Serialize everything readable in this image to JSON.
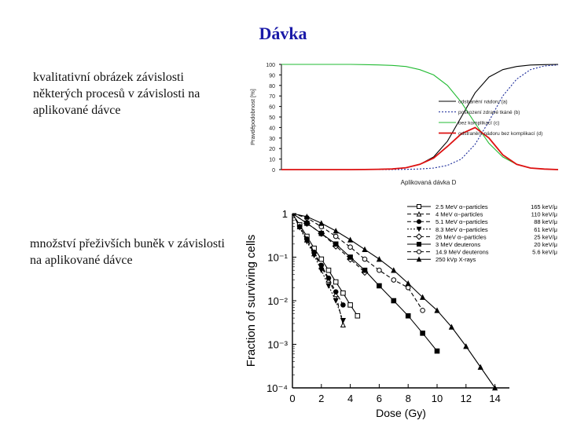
{
  "slide": {
    "title": "Dávka",
    "note1": "kvalitativní obrázek závislosti některých procesů v závislosti na aplikované dávce",
    "note2": "množství přeživších buněk v závislosti na aplikované dávce"
  },
  "chart_data": [
    {
      "type": "line",
      "xlabel": "Aplikovaná dávka D",
      "ylabel": "Pravděpodobnost [%]",
      "ylim": [
        0,
        100
      ],
      "yticks": [
        "0",
        "10",
        "20",
        "30",
        "40",
        "50",
        "60",
        "70",
        "80",
        "90",
        "100"
      ],
      "legend_position": "right",
      "grid": false,
      "x": [
        0,
        0.05,
        0.1,
        0.15,
        0.2,
        0.25,
        0.3,
        0.35,
        0.4,
        0.45,
        0.5,
        0.55,
        0.6,
        0.65,
        0.7,
        0.75,
        0.8,
        0.85,
        0.9,
        0.95,
        1.0
      ],
      "series": [
        {
          "name": "odstranění nádoru (a)",
          "color": "#000000",
          "dash": "solid",
          "values": [
            0,
            0,
            0,
            0,
            0,
            0,
            0.1,
            0.3,
            0.6,
            1.8,
            5,
            12,
            27,
            50,
            73,
            88,
            95,
            98,
            99.4,
            99.8,
            100
          ]
        },
        {
          "name": "poškození zdravé tkáně (b)",
          "color": "#1a2a9a",
          "dash": "dotted",
          "values": [
            0,
            0,
            0,
            0,
            0,
            0,
            0,
            0,
            0.1,
            0.2,
            0.6,
            1.5,
            4,
            10,
            24,
            46,
            70,
            86,
            95,
            98.5,
            99.5
          ]
        },
        {
          "name": "bez komplikací (c)",
          "color": "#22bb33",
          "dash": "solid",
          "values": [
            100,
            100,
            100,
            100,
            100,
            100,
            99.8,
            99.5,
            99,
            98,
            95,
            90,
            80,
            64,
            44,
            25,
            12,
            5,
            1.5,
            0.5,
            0
          ]
        },
        {
          "name": "odstranění nádoru bez komplikací (d)",
          "color": "#dd1111",
          "dash": "solid",
          "values": [
            0,
            0,
            0,
            0,
            0,
            0,
            0.1,
            0.3,
            0.6,
            1.8,
            5,
            11,
            22,
            34,
            40,
            30,
            14,
            5,
            1.5,
            0.5,
            0
          ]
        }
      ]
    },
    {
      "type": "line",
      "xlabel": "Dose   (Gy)",
      "ylabel": "Fraction  of  surviving  cells",
      "xlim": [
        0,
        15
      ],
      "ylim": [
        0.0001,
        1
      ],
      "yscale": "log",
      "xticks": [
        "0",
        "2",
        "4",
        "6",
        "8",
        "10",
        "12",
        "14"
      ],
      "yticks": [
        "1",
        "10⁻¹",
        "10⁻²",
        "10⁻³",
        "10⁻⁴"
      ],
      "legend_position": "top-right",
      "series": [
        {
          "name": "2.5  MeV  α−particles",
          "let": "165  keV/μ",
          "marker": "square-open",
          "dash": "solid",
          "x": [
            0,
            0.5,
            1,
            1.5,
            2,
            2.5,
            3,
            3.5,
            4,
            4.5
          ],
          "values": [
            1,
            0.55,
            0.3,
            0.16,
            0.09,
            0.05,
            0.027,
            0.015,
            0.008,
            0.0045
          ]
        },
        {
          "name": "4  MeV  α−particles",
          "let": "110  keV/μ",
          "marker": "triangle-open",
          "dash": "dashed",
          "x": [
            0,
            0.5,
            1,
            1.5,
            2,
            2.5,
            3,
            3.5
          ],
          "values": [
            1,
            0.5,
            0.25,
            0.12,
            0.06,
            0.03,
            0.014,
            0.0028
          ]
        },
        {
          "name": "5.1  MeV  α−particles",
          "let": "88  keV/μ",
          "marker": "circle-filled",
          "dash": "dashed",
          "x": [
            0,
            0.5,
            1,
            1.5,
            2,
            2.5,
            3,
            3.5
          ],
          "values": [
            1,
            0.5,
            0.26,
            0.13,
            0.065,
            0.033,
            0.016,
            0.008
          ]
        },
        {
          "name": "8.3  MeV  α−particles",
          "let": "61  keV/μ",
          "marker": "triangle-down-filled",
          "dash": "dotted",
          "x": [
            0,
            0.5,
            1,
            1.5,
            2,
            2.5,
            3,
            3.5
          ],
          "values": [
            1,
            0.48,
            0.23,
            0.11,
            0.05,
            0.022,
            0.01,
            0.0035
          ]
        },
        {
          "name": "26  MeV  α−particles",
          "let": "25  keV/μ",
          "marker": "diamond-open",
          "dash": "dashed",
          "x": [
            0,
            1,
            2,
            3,
            4,
            5
          ],
          "values": [
            1,
            0.6,
            0.35,
            0.18,
            0.09,
            0.045
          ]
        },
        {
          "name": "3  MeV  deuterons",
          "let": "20  keV/μ",
          "marker": "square-filled",
          "dash": "solid",
          "x": [
            0,
            1,
            2,
            3,
            4,
            5,
            6,
            7,
            8,
            9,
            10
          ],
          "values": [
            1,
            0.6,
            0.35,
            0.2,
            0.1,
            0.05,
            0.022,
            0.01,
            0.0045,
            0.0018,
            0.0007
          ]
        },
        {
          "name": "14.9  MeV  deuterons",
          "let": "5.6  keV/μ",
          "marker": "circle-open",
          "dash": "dashed",
          "x": [
            0,
            1,
            2,
            3,
            4,
            5,
            6,
            7,
            8,
            9
          ],
          "values": [
            1,
            0.8,
            0.5,
            0.3,
            0.17,
            0.09,
            0.05,
            0.03,
            0.02,
            0.006
          ]
        },
        {
          "name": "250  kVp  X-rays",
          "let": "",
          "marker": "triangle-filled",
          "dash": "solid",
          "x": [
            0,
            1,
            2,
            3,
            4,
            5,
            6,
            7,
            8,
            9,
            10,
            11,
            12,
            13,
            14
          ],
          "values": [
            1,
            0.85,
            0.6,
            0.4,
            0.25,
            0.15,
            0.09,
            0.05,
            0.025,
            0.012,
            0.006,
            0.0025,
            0.0009,
            0.0003,
            0.0001
          ]
        }
      ]
    }
  ]
}
